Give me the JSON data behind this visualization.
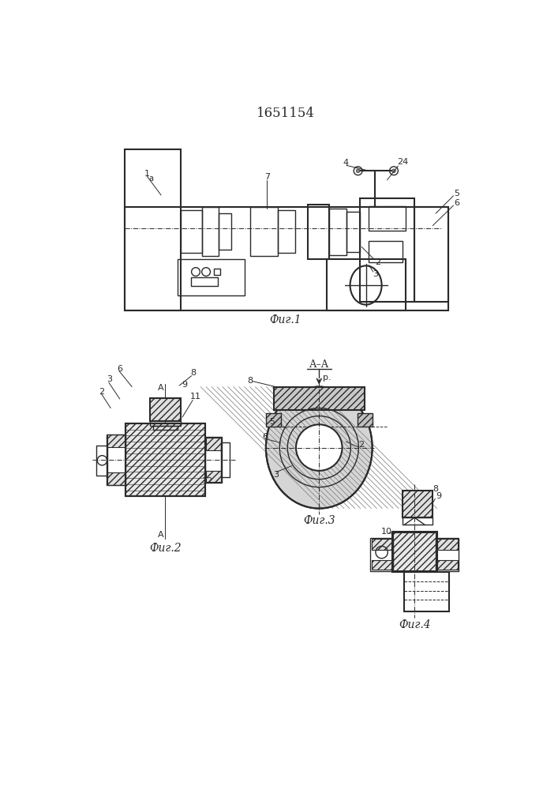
{
  "title": "1651154",
  "fig1_caption": "Фиг.1",
  "fig2_caption": "Фиг.2",
  "fig3_caption": "Фиг.3",
  "fig4_caption": "Фиг.4",
  "bg_color": "#ffffff",
  "line_color": "#2a2a2a",
  "fig_width": 7.07,
  "fig_height": 10.0,
  "dpi": 100
}
